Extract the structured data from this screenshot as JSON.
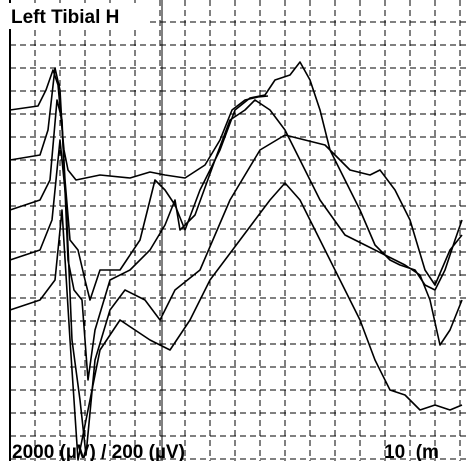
{
  "header": {
    "title": "Left Tibial H"
  },
  "footer": {
    "sensitivity": "2000 (µV) / 200 (µV)",
    "sweep": "10  (m"
  }
}
